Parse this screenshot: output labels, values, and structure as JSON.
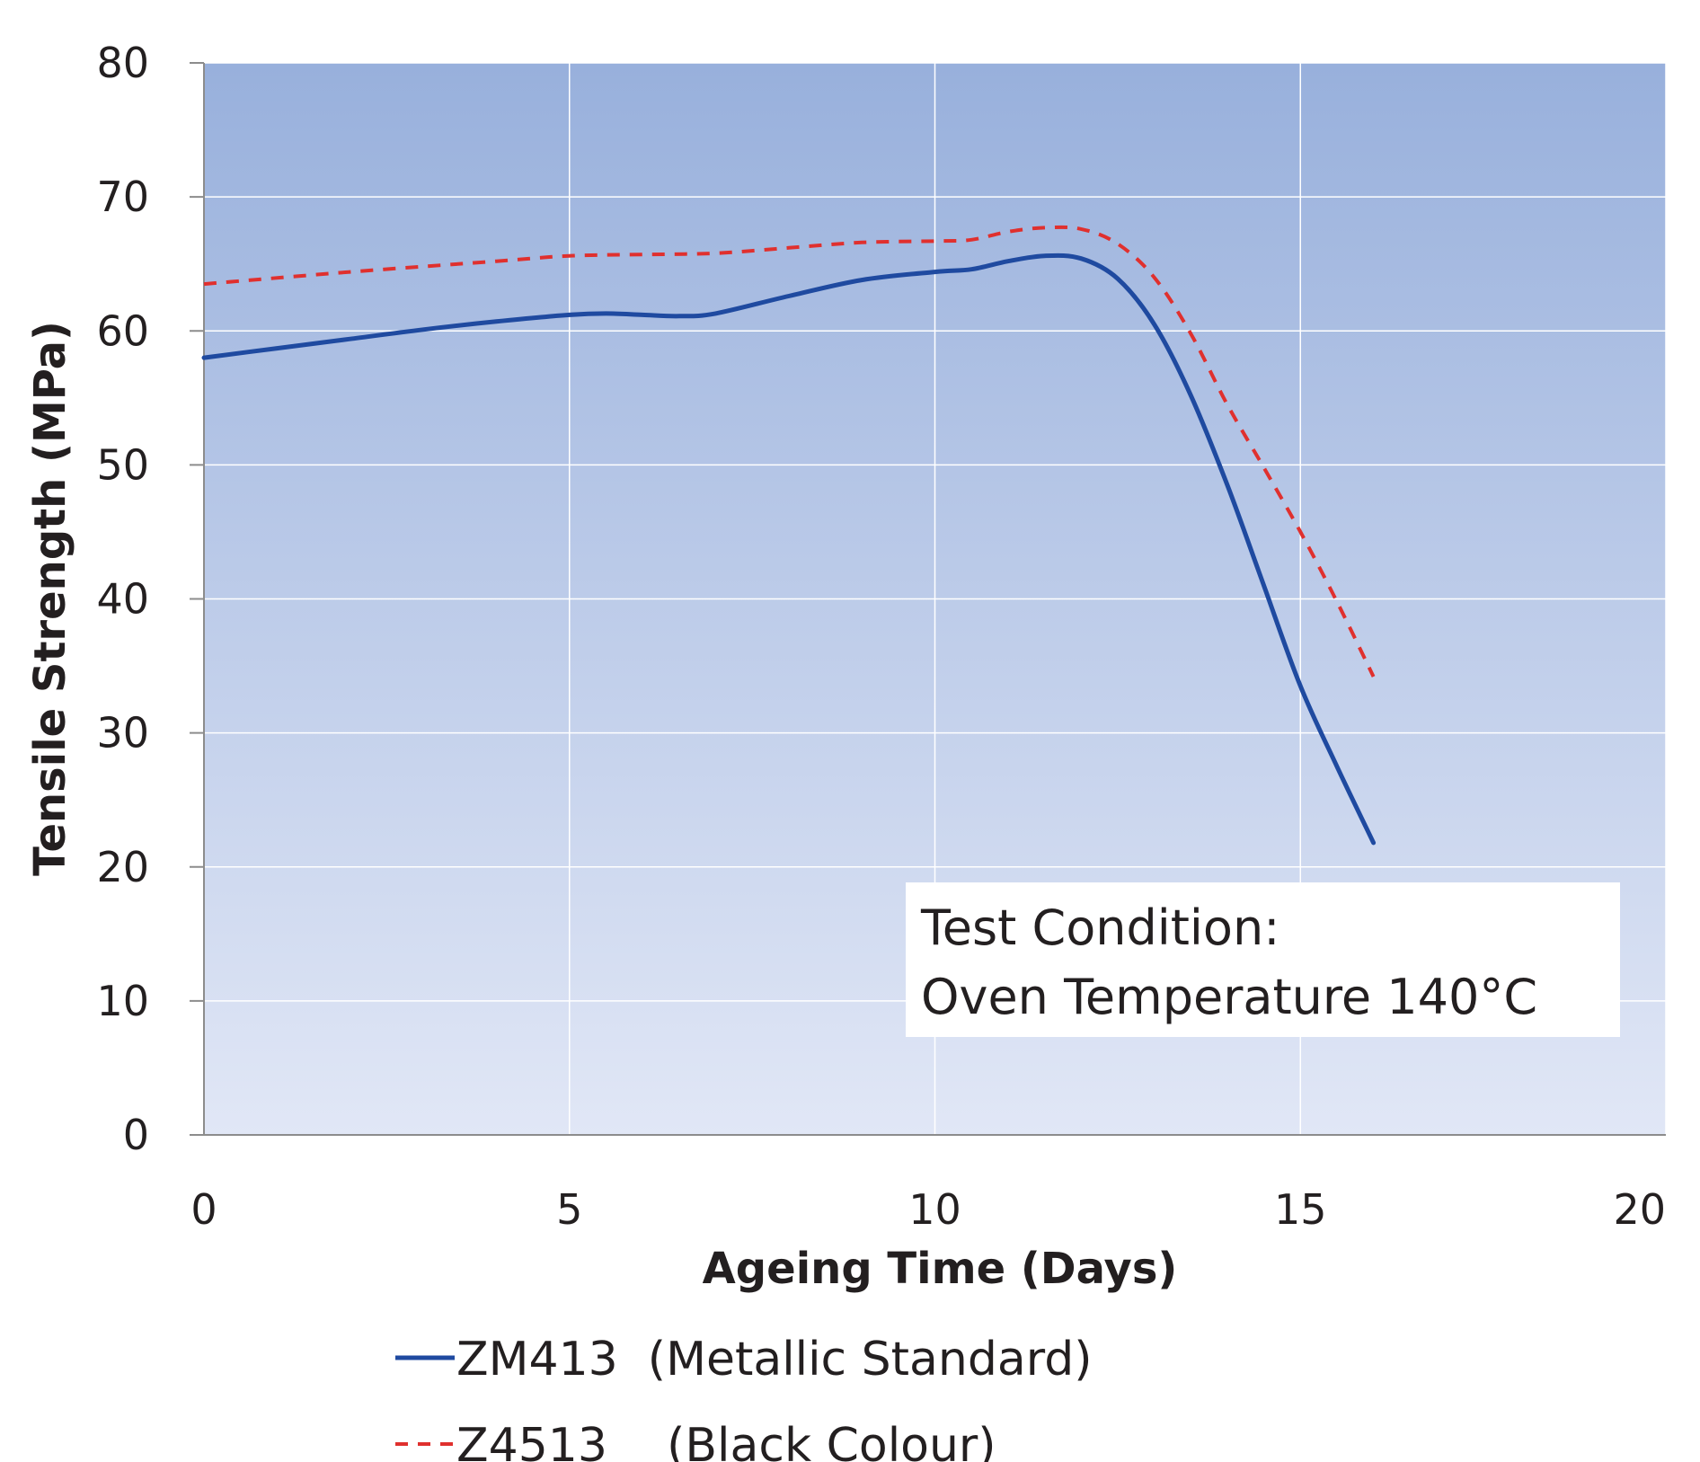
{
  "chart_data": {
    "type": "line",
    "xlabel": "Ageing Time (Days)",
    "ylabel": "Tensile Strength (MPa)",
    "xlim": [
      0,
      20
    ],
    "ylim": [
      0,
      80
    ],
    "x_ticks": [
      0,
      5,
      10,
      15,
      20
    ],
    "y_ticks": [
      0,
      10,
      20,
      30,
      40,
      50,
      60,
      70,
      80
    ],
    "x_tick_labels": [
      "0",
      "5",
      "10",
      "15",
      "20"
    ],
    "y_tick_labels": [
      "0",
      "10",
      "20",
      "30",
      "40",
      "50",
      "60",
      "70",
      "80"
    ],
    "grid": true,
    "legend_position": "bottom",
    "series": [
      {
        "name": "ZM413  (Metallic Standard)",
        "color": "#1f4aa0",
        "style": "solid",
        "x": [
          0,
          1,
          2,
          3,
          4,
          5,
          5.5,
          6,
          6.5,
          7,
          8,
          9,
          10,
          10.5,
          11,
          11.5,
          12,
          12.5,
          13,
          13.5,
          14,
          14.5,
          15,
          15.5,
          16
        ],
        "y": [
          58,
          58.7,
          59.4,
          60.1,
          60.7,
          61.2,
          61.3,
          61.2,
          61.1,
          61.3,
          62.6,
          63.8,
          64.4,
          64.6,
          65.2,
          65.6,
          65.4,
          63.9,
          60.5,
          55.2,
          48.5,
          41,
          33.5,
          27.5,
          21.8
        ]
      },
      {
        "name": "Z4513    (Black Colour)",
        "color": "#e0302e",
        "style": "dashed",
        "x": [
          0,
          2,
          4,
          5,
          6,
          7,
          8,
          9,
          10,
          10.5,
          11,
          11.5,
          12,
          12.5,
          13,
          13.5,
          14,
          14.5,
          15,
          15.5,
          16
        ],
        "y": [
          63.5,
          64.4,
          65.2,
          65.6,
          65.7,
          65.8,
          66.2,
          66.6,
          66.7,
          66.8,
          67.4,
          67.7,
          67.6,
          66.5,
          64,
          59.8,
          54.5,
          49.8,
          45,
          39.8,
          34.2
        ]
      }
    ],
    "annotation": {
      "line1": "Test Condition:",
      "line2": "Oven Temperature 140°C"
    },
    "colors": {
      "plot_bg_top": "#98b0dc",
      "plot_bg_bottom": "#e1e7f6",
      "grid": "#ffffff",
      "axis": "#8c8c8c"
    }
  }
}
